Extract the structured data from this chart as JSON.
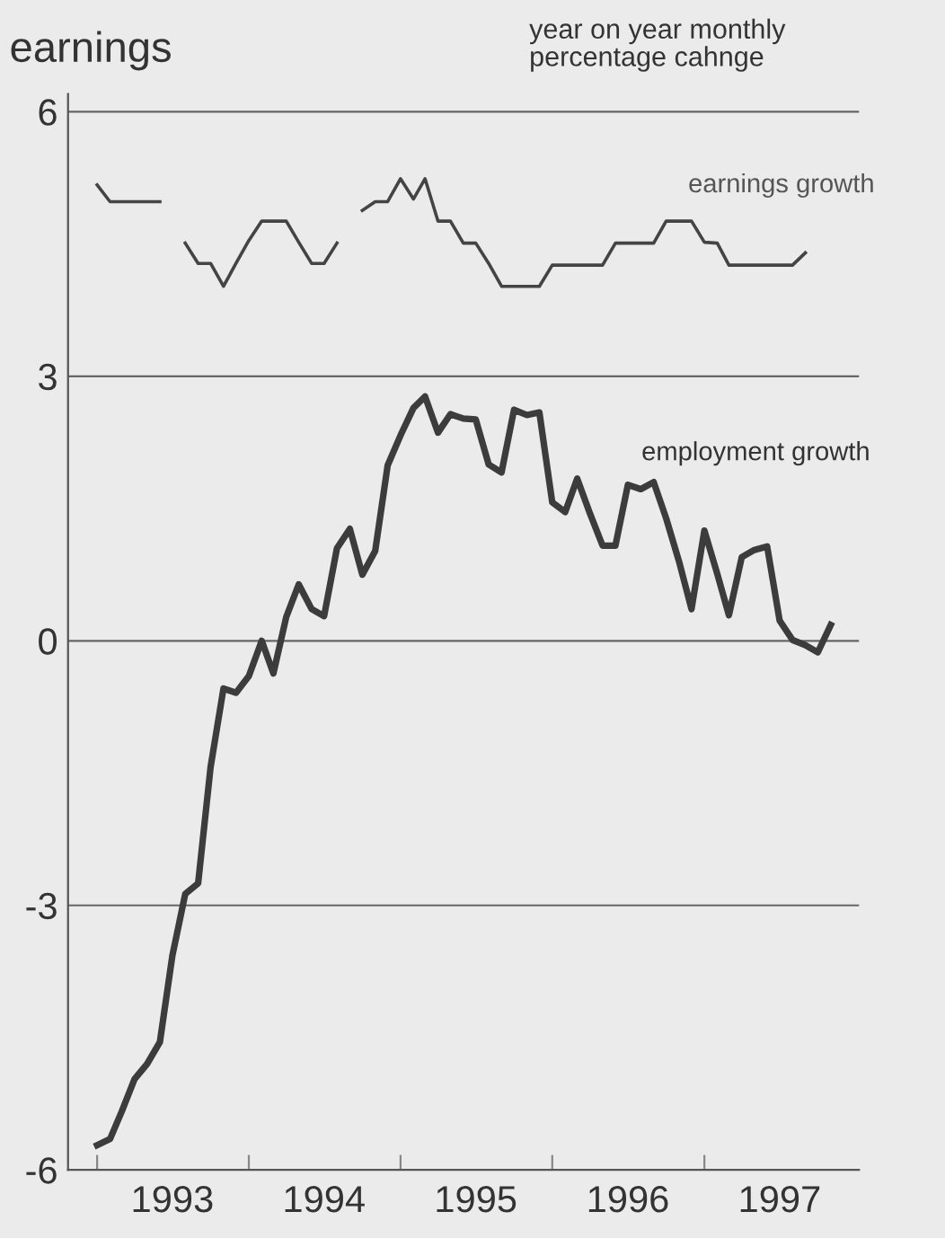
{
  "chart_data": {
    "type": "line",
    "title": "earnings",
    "subtitle": "year on year monthly\npercentage cahnge",
    "x": [
      "1993-01",
      "1993-02",
      "1993-03",
      "1993-04",
      "1993-05",
      "1993-06",
      "1993-07",
      "1993-08",
      "1993-09",
      "1993-10",
      "1993-11",
      "1993-12",
      "1994-01",
      "1994-02",
      "1994-03",
      "1994-04",
      "1994-05",
      "1994-06",
      "1994-07",
      "1994-08",
      "1994-09",
      "1994-10",
      "1994-11",
      "1994-12",
      "1995-01",
      "1995-02",
      "1995-03",
      "1995-04",
      "1995-05",
      "1995-06",
      "1995-07",
      "1995-08",
      "1995-09",
      "1995-10",
      "1995-11",
      "1995-12",
      "1996-01",
      "1996-02",
      "1996-03",
      "1996-04",
      "1996-05",
      "1996-06",
      "1996-07",
      "1996-08",
      "1996-09",
      "1996-10",
      "1996-11",
      "1996-12",
      "1997-01",
      "1997-02",
      "1997-03",
      "1997-04",
      "1997-05",
      "1997-06",
      "1997-07",
      "1997-08",
      "1997-09",
      "1997-10",
      "1997-11"
    ],
    "series": [
      {
        "name": "earnings growth",
        "color": "#444444",
        "values": [
          5.17,
          4.98,
          4.98,
          4.98,
          4.98,
          4.98,
          null,
          4.51,
          4.28,
          4.28,
          4.02,
          4.28,
          4.54,
          4.76,
          4.76,
          4.76,
          4.52,
          4.28,
          4.28,
          4.51,
          null,
          4.88,
          4.98,
          4.98,
          5.24,
          5.01,
          5.24,
          4.76,
          4.76,
          4.51,
          4.51,
          4.28,
          4.02,
          4.02,
          4.02,
          4.02,
          4.26,
          4.26,
          4.26,
          4.26,
          4.26,
          4.51,
          4.51,
          4.51,
          4.51,
          4.76,
          4.76,
          4.76,
          4.52,
          4.51,
          4.26,
          4.26,
          4.26,
          4.26,
          4.26,
          4.26,
          4.4,
          null,
          null
        ]
      },
      {
        "name": "employment growth",
        "color": "#3c3c3c",
        "values": [
          -5.72,
          -5.65,
          -5.34,
          -4.97,
          -4.8,
          -4.55,
          -3.57,
          -2.87,
          -2.75,
          -1.43,
          -0.54,
          -0.59,
          -0.4,
          0.0,
          -0.37,
          0.27,
          0.64,
          0.36,
          0.28,
          1.05,
          1.27,
          0.75,
          1.02,
          1.99,
          2.33,
          2.64,
          2.77,
          2.36,
          2.57,
          2.52,
          2.51,
          2.0,
          1.91,
          2.62,
          2.56,
          2.59,
          1.57,
          1.46,
          1.84,
          1.44,
          1.08,
          1.08,
          1.77,
          1.72,
          1.8,
          1.39,
          0.9,
          0.36,
          1.25,
          0.76,
          0.29,
          0.95,
          1.03,
          1.07,
          0.23,
          0.01,
          -0.05,
          -0.13,
          0.18
        ]
      }
    ],
    "xlim": [
      "1992-10-23",
      "1998-01-08"
    ],
    "xticks": [
      {
        "value": "1993-01-01",
        "label": null
      },
      {
        "value": "1994-01-01",
        "label": null
      },
      {
        "value": "1995-01-01",
        "label": null
      },
      {
        "value": "1996-01-01",
        "label": null
      },
      {
        "value": "1997-01-01",
        "label": null
      },
      {
        "value": "1993-07-01",
        "label": "1993"
      },
      {
        "value": "1994-07-01",
        "label": "1994"
      },
      {
        "value": "1995-07-01",
        "label": "1995"
      },
      {
        "value": "1996-07-01",
        "label": "1996"
      },
      {
        "value": "1997-07-01",
        "label": "1997"
      }
    ],
    "ylim": [
      -6,
      6.2
    ],
    "yticks": [
      -6,
      -3,
      0,
      3,
      6
    ],
    "grid": "y",
    "legend": false,
    "marker": "none",
    "line_style": "solid"
  }
}
